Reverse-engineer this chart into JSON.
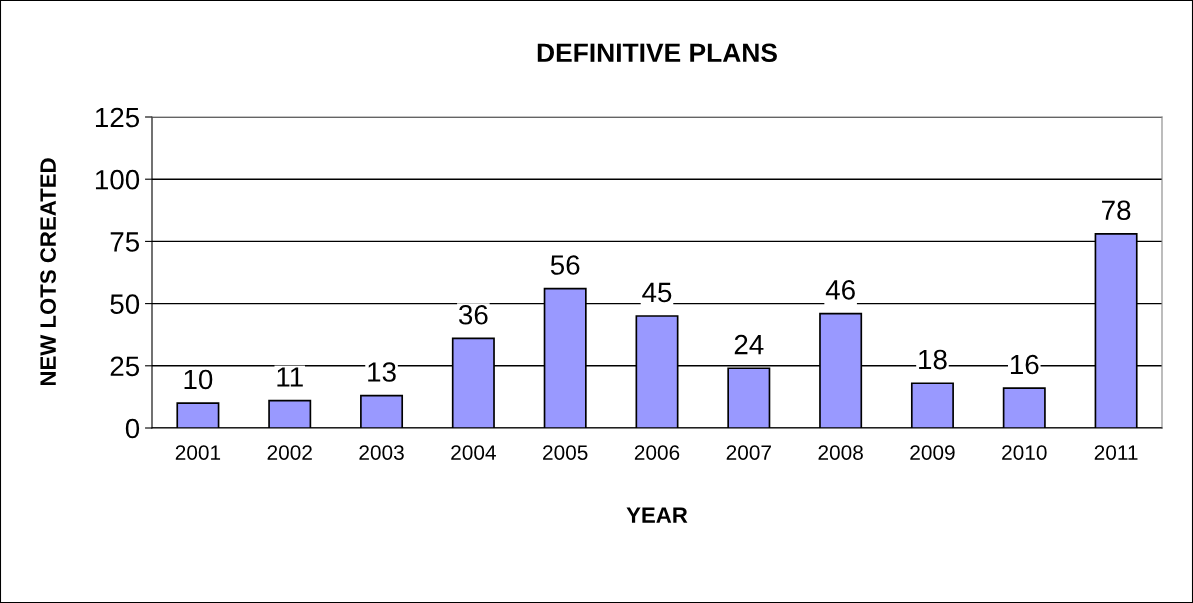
{
  "chart_data": {
    "type": "bar",
    "title": "DEFINITIVE PLANS",
    "xlabel": "YEAR",
    "ylabel": "NEW LOTS CREATED",
    "categories": [
      "2001",
      "2002",
      "2003",
      "2004",
      "2005",
      "2006",
      "2007",
      "2008",
      "2009",
      "2010",
      "2011"
    ],
    "values": [
      10,
      11,
      13,
      36,
      56,
      45,
      24,
      46,
      18,
      16,
      78
    ],
    "color": "#9999ff",
    "ylim": [
      0,
      125
    ],
    "yticks": [
      0,
      25,
      50,
      75,
      100,
      125
    ],
    "grid": "y",
    "data_labels": true
  }
}
